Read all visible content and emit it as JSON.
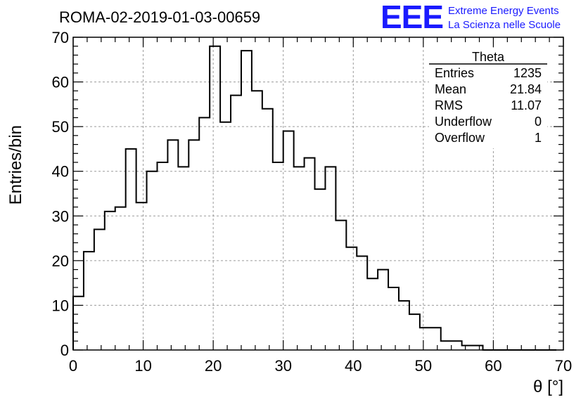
{
  "logo": {
    "letters": "EEE",
    "line1": "Extreme Energy Events",
    "line2": "La Scienza nelle Scuole",
    "color": "#1a1aff"
  },
  "stats": {
    "title": "Theta",
    "rows": [
      {
        "label": "Entries",
        "value": "1235"
      },
      {
        "label": "Mean",
        "value": "21.84"
      },
      {
        "label": "RMS",
        "value": "11.07"
      },
      {
        "label": "Underflow",
        "value": "0"
      },
      {
        "label": "Overflow",
        "value": "1"
      }
    ]
  },
  "chart_data": {
    "type": "bar",
    "title": "ROMA-02-2019-01-03-00659",
    "xlabel": "θ [°]",
    "ylabel": "Entries/bin",
    "xlim": [
      0,
      70
    ],
    "ylim": [
      0,
      70
    ],
    "xticks": [
      0,
      10,
      20,
      30,
      40,
      50,
      60,
      70
    ],
    "yticks": [
      0,
      10,
      20,
      30,
      40,
      50,
      60,
      70
    ],
    "grid": true,
    "bin_width": 1.5,
    "values": [
      12,
      22,
      27,
      31,
      32,
      45,
      33,
      40,
      42,
      47,
      41,
      47,
      52,
      68,
      51,
      57,
      67,
      58,
      54,
      42,
      49,
      41,
      43,
      36,
      41,
      29,
      23,
      21,
      16,
      18,
      14,
      11,
      8,
      5,
      5,
      2,
      2,
      1,
      1,
      0,
      0,
      0,
      0,
      0,
      0,
      0
    ],
    "color": "#000000"
  }
}
